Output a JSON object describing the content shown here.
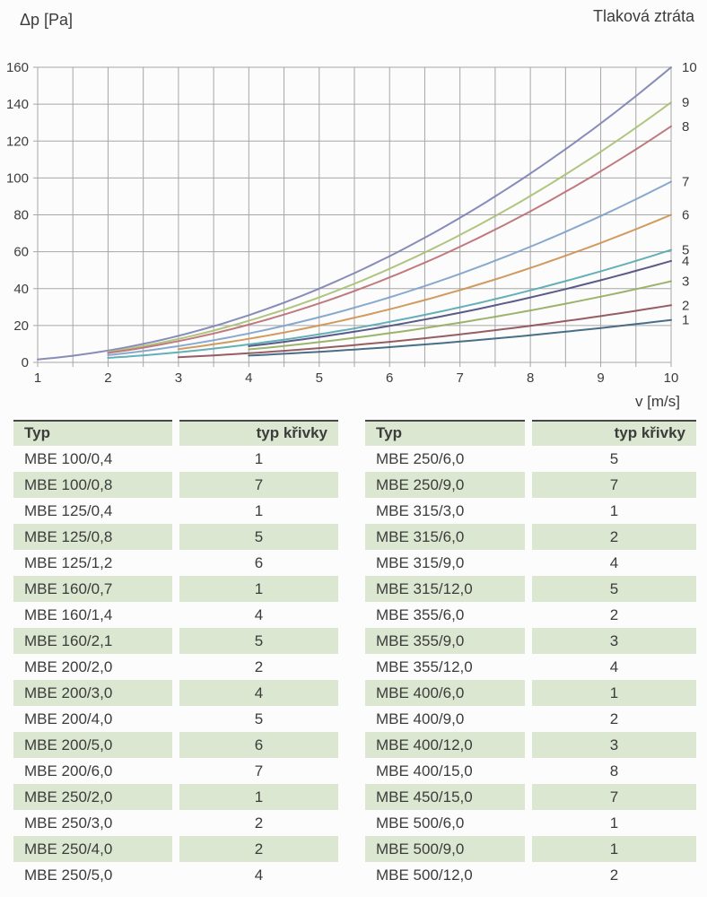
{
  "page": {
    "background": "#fcfcfc"
  },
  "chart": {
    "title": "Tlaková ztráta",
    "ylabel": "Δp [Pa]",
    "xlabel": "v [m/s]"
  },
  "chart_data": {
    "type": "line",
    "title": "Tlaková ztráta",
    "ylabel": "Δp [Pa]",
    "xlabel": "v [m/s]",
    "xlim": [
      1,
      10
    ],
    "ylim": [
      0,
      160
    ],
    "x_ticks": [
      1,
      2,
      3,
      4,
      5,
      6,
      7,
      8,
      9,
      10
    ],
    "y_ticks": [
      0,
      20,
      40,
      60,
      80,
      100,
      120,
      140,
      160
    ],
    "x_minor_step": 0.5,
    "grid": true,
    "legend_position": "labels right of curve ends",
    "series": [
      {
        "name": "10",
        "color": "#7d82b3",
        "v_start": 1,
        "k": 1.6,
        "points": [
          [
            1,
            1.6
          ],
          [
            2,
            6.4
          ],
          [
            3,
            14.4
          ],
          [
            4,
            25.6
          ],
          [
            5,
            40.0
          ],
          [
            6,
            57.6
          ],
          [
            7,
            78.4
          ],
          [
            8,
            102.4
          ],
          [
            9,
            129.6
          ],
          [
            10,
            160.0
          ]
        ]
      },
      {
        "name": "9",
        "color": "#a9c073",
        "v_start": 2,
        "k": 1.41,
        "points": [
          [
            2,
            5.6
          ],
          [
            3,
            12.7
          ],
          [
            4,
            22.6
          ],
          [
            5,
            35.3
          ],
          [
            6,
            50.8
          ],
          [
            7,
            69.1
          ],
          [
            8,
            90.2
          ],
          [
            9,
            114.2
          ],
          [
            10,
            141.0
          ]
        ]
      },
      {
        "name": "8",
        "color": "#bb6f74",
        "v_start": 2,
        "k": 1.28,
        "points": [
          [
            2,
            5.1
          ],
          [
            3,
            11.5
          ],
          [
            4,
            20.5
          ],
          [
            5,
            32.0
          ],
          [
            6,
            46.1
          ],
          [
            7,
            62.7
          ],
          [
            8,
            81.9
          ],
          [
            9,
            103.7
          ],
          [
            10,
            128.0
          ]
        ]
      },
      {
        "name": "7",
        "color": "#7ea2ca",
        "v_start": 2,
        "k": 0.98,
        "points": [
          [
            2,
            3.9
          ],
          [
            3,
            8.8
          ],
          [
            4,
            15.7
          ],
          [
            5,
            24.5
          ],
          [
            6,
            35.3
          ],
          [
            7,
            48.0
          ],
          [
            8,
            62.7
          ],
          [
            9,
            79.4
          ],
          [
            10,
            98.0
          ]
        ]
      },
      {
        "name": "6",
        "color": "#cd9150",
        "v_start": 3,
        "k": 0.8,
        "points": [
          [
            3,
            7.2
          ],
          [
            4,
            12.8
          ],
          [
            5,
            20.0
          ],
          [
            6,
            28.8
          ],
          [
            7,
            39.2
          ],
          [
            8,
            51.2
          ],
          [
            9,
            64.8
          ],
          [
            10,
            80.0
          ]
        ]
      },
      {
        "name": "5",
        "color": "#57a9b1",
        "v_start": 2,
        "k": 0.61,
        "points": [
          [
            2,
            2.4
          ],
          [
            3,
            5.5
          ],
          [
            4,
            9.8
          ],
          [
            5,
            15.3
          ],
          [
            6,
            22.0
          ],
          [
            7,
            29.9
          ],
          [
            8,
            39.0
          ],
          [
            9,
            49.4
          ],
          [
            10,
            61.0
          ]
        ]
      },
      {
        "name": "4",
        "color": "#4d4c7f",
        "v_start": 4,
        "k": 0.55,
        "points": [
          [
            4,
            8.8
          ],
          [
            5,
            13.8
          ],
          [
            6,
            19.8
          ],
          [
            7,
            27.0
          ],
          [
            8,
            35.2
          ],
          [
            9,
            44.6
          ],
          [
            10,
            55.0
          ]
        ]
      },
      {
        "name": "3",
        "color": "#94ad60",
        "v_start": 4,
        "k": 0.44,
        "points": [
          [
            4,
            7.0
          ],
          [
            5,
            11.0
          ],
          [
            6,
            15.8
          ],
          [
            7,
            21.6
          ],
          [
            8,
            28.2
          ],
          [
            9,
            35.6
          ],
          [
            10,
            44.0
          ]
        ]
      },
      {
        "name": "2",
        "color": "#8d4f56",
        "v_start": 3,
        "k": 0.31,
        "points": [
          [
            3,
            2.8
          ],
          [
            4,
            5.0
          ],
          [
            5,
            7.8
          ],
          [
            6,
            11.2
          ],
          [
            7,
            15.2
          ],
          [
            8,
            19.8
          ],
          [
            9,
            25.1
          ],
          [
            10,
            31.0
          ]
        ]
      },
      {
        "name": "1",
        "color": "#3a627e",
        "v_start": 4,
        "k": 0.23,
        "points": [
          [
            4,
            3.7
          ],
          [
            5,
            5.8
          ],
          [
            6,
            8.3
          ],
          [
            7,
            11.3
          ],
          [
            8,
            14.7
          ],
          [
            9,
            18.6
          ],
          [
            10,
            23.0
          ]
        ]
      }
    ]
  },
  "tables": [
    {
      "headers": {
        "typ": "Typ",
        "curve": "typ křivky"
      },
      "rows": [
        [
          "MBE 100/0,4",
          "1"
        ],
        [
          "MBE 100/0,8",
          "7"
        ],
        [
          "MBE 125/0,4",
          "1"
        ],
        [
          "MBE 125/0,8",
          "5"
        ],
        [
          "MBE 125/1,2",
          "6"
        ],
        [
          "MBE 160/0,7",
          "1"
        ],
        [
          "MBE 160/1,4",
          "4"
        ],
        [
          "MBE 160/2,1",
          "5"
        ],
        [
          "MBE 200/2,0",
          "2"
        ],
        [
          "MBE 200/3,0",
          "4"
        ],
        [
          "MBE 200/4,0",
          "5"
        ],
        [
          "MBE 200/5,0",
          "6"
        ],
        [
          "MBE 200/6,0",
          "7"
        ],
        [
          "MBE 250/2,0",
          "1"
        ],
        [
          "MBE 250/3,0",
          "2"
        ],
        [
          "MBE 250/4,0",
          "2"
        ],
        [
          "MBE 250/5,0",
          "4"
        ]
      ]
    },
    {
      "headers": {
        "typ": "Typ",
        "curve": "typ křivky"
      },
      "rows": [
        [
          "MBE 250/6,0",
          "5"
        ],
        [
          "MBE 250/9,0",
          "7"
        ],
        [
          "MBE 315/3,0",
          "1"
        ],
        [
          "MBE 315/6,0",
          "2"
        ],
        [
          "MBE 315/9,0",
          "4"
        ],
        [
          "MBE 315/12,0",
          "5"
        ],
        [
          "MBE 355/6,0",
          "2"
        ],
        [
          "MBE 355/9,0",
          "3"
        ],
        [
          "MBE 355/12,0",
          "4"
        ],
        [
          "MBE 400/6,0",
          "1"
        ],
        [
          "MBE 400/9,0",
          "2"
        ],
        [
          "MBE 400/12,0",
          "3"
        ],
        [
          "MBE 400/15,0",
          "8"
        ],
        [
          "MBE 450/15,0",
          "7"
        ],
        [
          "MBE 500/6,0",
          "1"
        ],
        [
          "MBE 500/9,0",
          "1"
        ],
        [
          "MBE 500/12,0",
          "2"
        ]
      ]
    }
  ],
  "colors": {
    "table_green": "#dbe7d0",
    "grid_gray": "#a6a6a6",
    "text": "#3c3c3c",
    "header_border": "#474747"
  }
}
